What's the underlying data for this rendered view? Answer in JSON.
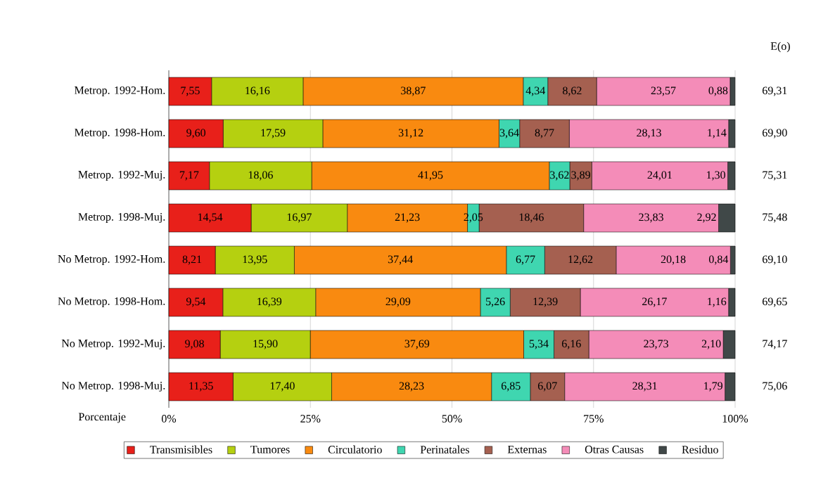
{
  "chart_data": {
    "type": "bar",
    "orientation": "horizontal",
    "stacked": true,
    "xlabel": "Porcentaje",
    "categories": [
      "Metrop.    1992-Hom.",
      "Metrop.    1998-Hom.",
      "Metrop.    1992-Muj.",
      "Metrop.    1998-Muj.",
      "No Metrop. 1992-Hom.",
      "No Metrop. 1998-Hom.",
      "No Metrop. 1992-Muj.",
      "No Metrop. 1998-Muj."
    ],
    "series": [
      {
        "name": "Transmisibles",
        "color": "#e8201a",
        "values": [
          7.55,
          9.6,
          7.17,
          14.54,
          8.21,
          9.54,
          9.08,
          11.35
        ],
        "value_labels": [
          "7,55",
          "9,60",
          "7,17",
          "14,54",
          "8,21",
          "9,54",
          "9,08",
          "11,35"
        ]
      },
      {
        "name": "Tumores",
        "color": "#b5d010",
        "values": [
          16.16,
          17.59,
          18.06,
          16.97,
          13.95,
          16.39,
          15.9,
          17.4
        ],
        "value_labels": [
          "16,16",
          "17,59",
          "18,06",
          "16,97",
          "13,95",
          "16,39",
          "15,90",
          "17,40"
        ]
      },
      {
        "name": "Circulatorio",
        "color": "#f98a10",
        "values": [
          38.87,
          31.12,
          41.95,
          21.23,
          37.44,
          29.09,
          37.69,
          28.23
        ],
        "value_labels": [
          "38,87",
          "31,12",
          "41,95",
          "21,23",
          "37,44",
          "29,09",
          "37,69",
          "28,23"
        ]
      },
      {
        "name": "Perinatales",
        "color": "#3fd6b0",
        "values": [
          4.34,
          3.64,
          3.62,
          2.05,
          6.77,
          5.26,
          5.34,
          6.85
        ],
        "value_labels": [
          "4,34",
          "3,64",
          "3,62",
          "2,05",
          "6,77",
          "5,26",
          "5,34",
          "6,85"
        ]
      },
      {
        "name": "Externas",
        "color": "#a56050",
        "values": [
          8.62,
          8.77,
          3.89,
          18.46,
          12.62,
          12.39,
          6.16,
          6.07
        ],
        "value_labels": [
          "8,62",
          "8,77",
          "3,89",
          "18,46",
          "12,62",
          "12,39",
          "6,16",
          "6,07"
        ]
      },
      {
        "name": "Otras Causas",
        "color": "#f48cb8",
        "values": [
          23.57,
          28.13,
          24.01,
          23.83,
          20.18,
          26.17,
          23.73,
          28.31
        ],
        "value_labels": [
          "23,57",
          "28,13",
          "24,01",
          "23,83",
          "20,18",
          "26,17",
          "23,73",
          "28,31"
        ]
      },
      {
        "name": "Residuo",
        "color": "#404848",
        "values": [
          0.88,
          1.14,
          1.3,
          2.92,
          0.84,
          1.16,
          2.1,
          1.79
        ],
        "value_labels": [
          "0,88",
          "1,14",
          "1,30",
          "2,92",
          "0,84",
          "1,16",
          "2,10",
          "1,79"
        ]
      }
    ],
    "xlim": [
      0,
      100
    ],
    "xticks": [
      {
        "value": 0,
        "label": "0%"
      },
      {
        "value": 25,
        "label": "25%"
      },
      {
        "value": 50,
        "label": "50%"
      },
      {
        "value": 75,
        "label": "75%"
      },
      {
        "value": 100,
        "label": "100%"
      }
    ],
    "grid": "x",
    "legend": "bottom",
    "annotations": [
      "E(o)",
      "69,31",
      "69,90",
      "75,31",
      "75,48",
      "69,10",
      "69,65",
      "74,17",
      "75,06"
    ]
  }
}
